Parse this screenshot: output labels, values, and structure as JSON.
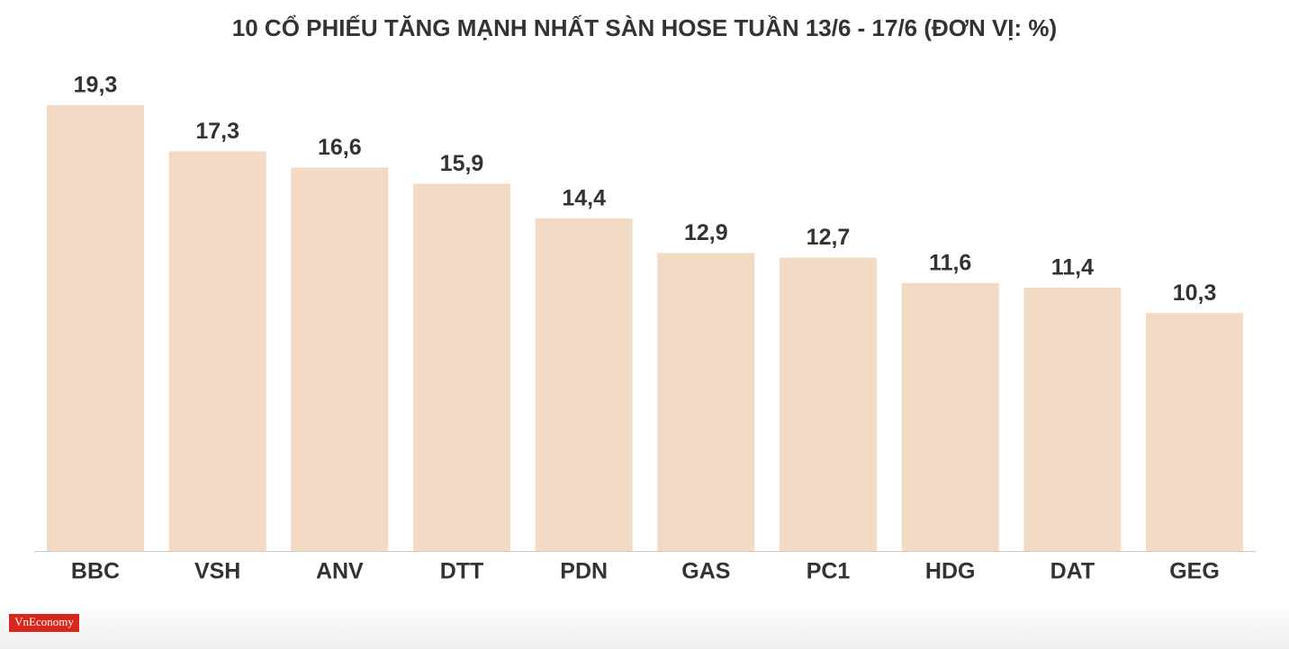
{
  "chart_data": {
    "type": "bar",
    "title": "10 CỔ PHIẾU TĂNG MẠNH NHẤT SÀN HOSE TUẦN 13/6 - 17/6 (ĐƠN VỊ: %)",
    "categories": [
      "BBC",
      "VSH",
      "ANV",
      "DTT",
      "PDN",
      "GAS",
      "PC1",
      "HDG",
      "DAT",
      "GEG"
    ],
    "values": [
      19.3,
      17.3,
      16.6,
      15.9,
      14.4,
      12.9,
      12.7,
      11.6,
      11.4,
      10.3
    ],
    "value_labels": [
      "19,3",
      "17,3",
      "16,6",
      "15,9",
      "14,4",
      "12,9",
      "12,7",
      "11,6",
      "11,4",
      "10,3"
    ],
    "color": "#f2dac5"
  },
  "logo": "VnEconomy"
}
